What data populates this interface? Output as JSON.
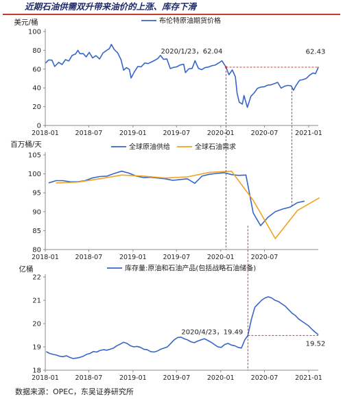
{
  "header": {
    "title": "近期石油供需双升带来油价的上涨、库存下滑"
  },
  "footer": {
    "source": "数据来源：OPEC，东吴证券研究所"
  },
  "colors": {
    "blue": "#3565c8",
    "orange": "#f0a21e",
    "red": "#d9342b",
    "axis": "#888888",
    "text": "#222222"
  },
  "chart_data": [
    {
      "type": "line",
      "ylabel": "美元/桶",
      "ylim": [
        0,
        100
      ],
      "yticks": [
        0,
        20,
        40,
        60,
        80,
        100
      ],
      "xlim": [
        "2018-01-01",
        "2021-02-10"
      ],
      "xticks": [
        "2018-01",
        "2018-07",
        "2019-01",
        "2019-07",
        "2020-01",
        "2020-07",
        "2021-01"
      ],
      "legend_position": "top",
      "grid": false,
      "series": [
        {
          "name": "布伦特原油期货价格",
          "color": "#3565c8",
          "points": [
            [
              "2018-01-02",
              66.5
            ],
            [
              "2018-01-15",
              69.8
            ],
            [
              "2018-01-29",
              69.5
            ],
            [
              "2018-02-09",
              62.8
            ],
            [
              "2018-02-26",
              67.2
            ],
            [
              "2018-03-12",
              64.9
            ],
            [
              "2018-03-26",
              70.1
            ],
            [
              "2018-04-09",
              68.6
            ],
            [
              "2018-04-23",
              74.7
            ],
            [
              "2018-05-07",
              76.1
            ],
            [
              "2018-05-17",
              80.0
            ],
            [
              "2018-05-25",
              76.4
            ],
            [
              "2018-06-08",
              76.5
            ],
            [
              "2018-06-20",
              73.0
            ],
            [
              "2018-07-03",
              77.8
            ],
            [
              "2018-07-17",
              72.0
            ],
            [
              "2018-07-31",
              74.3
            ],
            [
              "2018-08-15",
              70.8
            ],
            [
              "2018-08-29",
              77.1
            ],
            [
              "2018-09-12",
              79.7
            ],
            [
              "2018-09-25",
              81.9
            ],
            [
              "2018-10-03",
              86.3
            ],
            [
              "2018-10-15",
              80.8
            ],
            [
              "2018-10-29",
              77.3
            ],
            [
              "2018-11-12",
              70.1
            ],
            [
              "2018-11-23",
              58.8
            ],
            [
              "2018-12-05",
              61.6
            ],
            [
              "2018-12-17",
              59.6
            ],
            [
              "2018-12-24",
              50.5
            ],
            [
              "2019-01-07",
              57.3
            ],
            [
              "2019-01-21",
              62.7
            ],
            [
              "2019-02-04",
              62.5
            ],
            [
              "2019-02-19",
              66.5
            ],
            [
              "2019-03-05",
              65.9
            ],
            [
              "2019-03-19",
              67.6
            ],
            [
              "2019-04-02",
              69.4
            ],
            [
              "2019-04-16",
              71.7
            ],
            [
              "2019-04-25",
              74.6
            ],
            [
              "2019-05-08",
              70.4
            ],
            [
              "2019-05-22",
              70.9
            ],
            [
              "2019-06-05",
              60.6
            ],
            [
              "2019-06-19",
              61.8
            ],
            [
              "2019-07-02",
              62.4
            ],
            [
              "2019-07-16",
              64.4
            ],
            [
              "2019-07-31",
              65.2
            ],
            [
              "2019-08-07",
              56.2
            ],
            [
              "2019-08-21",
              60.3
            ],
            [
              "2019-09-04",
              60.7
            ],
            [
              "2019-09-16",
              69.0
            ],
            [
              "2019-09-30",
              60.8
            ],
            [
              "2019-10-14",
              59.4
            ],
            [
              "2019-10-28",
              61.6
            ],
            [
              "2019-11-11",
              62.2
            ],
            [
              "2019-11-25",
              63.6
            ],
            [
              "2019-12-09",
              64.3
            ],
            [
              "2019-12-23",
              66.4
            ],
            [
              "2020-01-06",
              68.9
            ],
            [
              "2020-01-23",
              62.04
            ],
            [
              "2020-02-04",
              54.0
            ],
            [
              "2020-02-18",
              59.1
            ],
            [
              "2020-03-02",
              51.9
            ],
            [
              "2020-03-09",
              34.4
            ],
            [
              "2020-03-18",
              24.9
            ],
            [
              "2020-03-31",
              22.7
            ],
            [
              "2020-04-07",
              31.9
            ],
            [
              "2020-04-21",
              19.3
            ],
            [
              "2020-05-05",
              30.9
            ],
            [
              "2020-05-19",
              34.7
            ],
            [
              "2020-06-02",
              39.6
            ],
            [
              "2020-06-16",
              40.9
            ],
            [
              "2020-06-30",
              41.2
            ],
            [
              "2020-07-14",
              42.9
            ],
            [
              "2020-07-28",
              43.2
            ],
            [
              "2020-08-11",
              44.5
            ],
            [
              "2020-08-25",
              45.9
            ],
            [
              "2020-09-08",
              39.8
            ],
            [
              "2020-09-22",
              41.7
            ],
            [
              "2020-10-06",
              42.7
            ],
            [
              "2020-10-20",
              42.2
            ],
            [
              "2020-10-30",
              37.5
            ],
            [
              "2020-11-09",
              42.4
            ],
            [
              "2020-11-24",
              48.1
            ],
            [
              "2020-12-08",
              48.8
            ],
            [
              "2020-12-22",
              50.1
            ],
            [
              "2021-01-05",
              53.6
            ],
            [
              "2021-01-19",
              55.9
            ],
            [
              "2021-01-29",
              55.0
            ],
            [
              "2021-02-08",
              60.6
            ],
            [
              "2021-02-10",
              62.43
            ]
          ]
        }
      ],
      "annotations": [
        {
          "text": "2020/1/23，62.04",
          "date": "2020-01-23",
          "value": 62.04
        },
        {
          "text": "62.43",
          "date": "2021-02-10",
          "value": 62.43
        }
      ]
    },
    {
      "type": "line",
      "ylabel": "百万桶/天",
      "ylim": [
        80,
        105
      ],
      "yticks": [
        80,
        85,
        90,
        95,
        100,
        105
      ],
      "xlim": [
        "2018-01-01",
        "2021-02-10"
      ],
      "xticks": [
        "2018-01",
        "2018-07",
        "2019-01",
        "2019-07",
        "2020-01",
        "2020-07"
      ],
      "legend_position": "top",
      "grid": false,
      "series": [
        {
          "name": "全球原油供给",
          "color": "#3565c8",
          "points": [
            [
              "2018-01-15",
              97.6
            ],
            [
              "2018-02-15",
              98.2
            ],
            [
              "2018-03-15",
              98.2
            ],
            [
              "2018-04-15",
              97.9
            ],
            [
              "2018-05-15",
              97.9
            ],
            [
              "2018-06-15",
              98.2
            ],
            [
              "2018-07-15",
              98.9
            ],
            [
              "2018-08-15",
              99.3
            ],
            [
              "2018-09-15",
              99.4
            ],
            [
              "2018-10-15",
              100.1
            ],
            [
              "2018-11-15",
              100.7
            ],
            [
              "2018-12-15",
              100.2
            ],
            [
              "2019-01-15",
              99.4
            ],
            [
              "2019-02-15",
              99.0
            ],
            [
              "2019-03-15",
              99.1
            ],
            [
              "2019-04-15",
              98.9
            ],
            [
              "2019-05-15",
              98.7
            ],
            [
              "2019-06-15",
              98.3
            ],
            [
              "2019-07-15",
              98.5
            ],
            [
              "2019-08-15",
              98.7
            ],
            [
              "2019-09-15",
              97.5
            ],
            [
              "2019-10-15",
              99.4
            ],
            [
              "2019-11-15",
              99.9
            ],
            [
              "2019-12-15",
              100.1
            ],
            [
              "2020-01-15",
              100.3
            ],
            [
              "2020-02-15",
              99.8
            ],
            [
              "2020-03-15",
              99.6
            ],
            [
              "2020-04-15",
              99.7
            ],
            [
              "2020-05-15",
              89.7
            ],
            [
              "2020-06-15",
              86.3
            ],
            [
              "2020-07-15",
              88.5
            ],
            [
              "2020-08-15",
              90.0
            ],
            [
              "2020-09-15",
              90.7
            ],
            [
              "2020-10-15",
              91.2
            ],
            [
              "2020-11-15",
              92.4
            ],
            [
              "2020-12-15",
              92.8
            ]
          ]
        },
        {
          "name": "全球石油需求",
          "color": "#f0a21e",
          "points": [
            [
              "2018-02-15",
              97.6
            ],
            [
              "2018-05-15",
              97.8
            ],
            [
              "2018-08-15",
              98.7
            ],
            [
              "2018-11-15",
              99.7
            ],
            [
              "2019-02-15",
              99.4
            ],
            [
              "2019-05-15",
              98.9
            ],
            [
              "2019-08-15",
              99.2
            ],
            [
              "2019-11-15",
              100.4
            ],
            [
              "2020-02-15",
              100.7
            ],
            [
              "2020-05-15",
              93.0
            ],
            [
              "2020-08-15",
              82.9
            ],
            [
              "2020-11-15",
              90.3
            ],
            [
              "2021-02-15",
              93.7
            ]
          ]
        }
      ]
    },
    {
      "type": "line",
      "ylabel": "亿桶",
      "ylim": [
        18,
        22
      ],
      "yticks": [
        18,
        19,
        20,
        21,
        22
      ],
      "xlim": [
        "2018-01-01",
        "2021-02-10"
      ],
      "xticks": [
        "2018-01",
        "2018-07",
        "2019-01",
        "2019-07",
        "2020-01",
        "2020-07",
        "2021-01"
      ],
      "legend_position": "top",
      "grid": false,
      "series": [
        {
          "name": "库存量:原油和石油产品(包括战略石油储备)",
          "color": "#3565c8",
          "points": [
            [
              "2018-01-05",
              18.8
            ],
            [
              "2018-01-19",
              18.72
            ],
            [
              "2018-02-02",
              18.68
            ],
            [
              "2018-02-16",
              18.65
            ],
            [
              "2018-03-02",
              18.6
            ],
            [
              "2018-03-16",
              18.58
            ],
            [
              "2018-03-30",
              18.62
            ],
            [
              "2018-04-13",
              18.55
            ],
            [
              "2018-04-27",
              18.5
            ],
            [
              "2018-05-11",
              18.52
            ],
            [
              "2018-05-25",
              18.55
            ],
            [
              "2018-06-08",
              18.6
            ],
            [
              "2018-06-22",
              18.68
            ],
            [
              "2018-07-06",
              18.72
            ],
            [
              "2018-07-20",
              18.8
            ],
            [
              "2018-08-03",
              18.78
            ],
            [
              "2018-08-17",
              18.85
            ],
            [
              "2018-08-31",
              18.88
            ],
            [
              "2018-09-14",
              18.86
            ],
            [
              "2018-09-28",
              18.9
            ],
            [
              "2018-10-12",
              18.95
            ],
            [
              "2018-10-26",
              19.05
            ],
            [
              "2018-11-09",
              19.12
            ],
            [
              "2018-11-23",
              19.2
            ],
            [
              "2018-12-07",
              19.15
            ],
            [
              "2018-12-21",
              19.05
            ],
            [
              "2019-01-04",
              19.0
            ],
            [
              "2019-01-18",
              19.02
            ],
            [
              "2019-02-01",
              18.98
            ],
            [
              "2019-02-15",
              18.9
            ],
            [
              "2019-03-01",
              18.88
            ],
            [
              "2019-03-15",
              18.8
            ],
            [
              "2019-03-29",
              18.78
            ],
            [
              "2019-04-12",
              18.82
            ],
            [
              "2019-04-26",
              18.9
            ],
            [
              "2019-05-10",
              18.95
            ],
            [
              "2019-05-24",
              19.0
            ],
            [
              "2019-06-07",
              19.15
            ],
            [
              "2019-06-21",
              19.3
            ],
            [
              "2019-07-05",
              19.4
            ],
            [
              "2019-07-19",
              19.42
            ],
            [
              "2019-08-02",
              19.35
            ],
            [
              "2019-08-16",
              19.3
            ],
            [
              "2019-08-30",
              19.22
            ],
            [
              "2019-09-13",
              19.18
            ],
            [
              "2019-09-27",
              19.25
            ],
            [
              "2019-10-11",
              19.3
            ],
            [
              "2019-10-25",
              19.35
            ],
            [
              "2019-11-08",
              19.28
            ],
            [
              "2019-11-22",
              19.2
            ],
            [
              "2019-12-06",
              19.1
            ],
            [
              "2019-12-20",
              19.0
            ],
            [
              "2020-01-03",
              18.98
            ],
            [
              "2020-01-17",
              19.1
            ],
            [
              "2020-01-31",
              19.15
            ],
            [
              "2020-02-14",
              19.08
            ],
            [
              "2020-02-28",
              19.05
            ],
            [
              "2020-03-13",
              18.98
            ],
            [
              "2020-03-27",
              18.95
            ],
            [
              "2020-04-10",
              19.3
            ],
            [
              "2020-04-23",
              19.49
            ],
            [
              "2020-05-08",
              20.2
            ],
            [
              "2020-05-22",
              20.7
            ],
            [
              "2020-06-05",
              20.85
            ],
            [
              "2020-06-19",
              21.0
            ],
            [
              "2020-07-03",
              21.1
            ],
            [
              "2020-07-17",
              21.15
            ],
            [
              "2020-07-31",
              21.1
            ],
            [
              "2020-08-14",
              21.0
            ],
            [
              "2020-08-28",
              20.95
            ],
            [
              "2020-09-11",
              20.85
            ],
            [
              "2020-09-25",
              20.75
            ],
            [
              "2020-10-09",
              20.6
            ],
            [
              "2020-10-23",
              20.45
            ],
            [
              "2020-11-06",
              20.35
            ],
            [
              "2020-11-20",
              20.2
            ],
            [
              "2020-12-04",
              20.1
            ],
            [
              "2020-12-18",
              20.0
            ],
            [
              "2021-01-01",
              19.9
            ],
            [
              "2021-01-15",
              19.75
            ],
            [
              "2021-01-29",
              19.62
            ],
            [
              "2021-02-10",
              19.52
            ]
          ]
        }
      ],
      "annotations": [
        {
          "text": "2020/4/23，19.49",
          "date": "2020-04-23",
          "value": 19.49
        },
        {
          "text": "19.52",
          "date": "2021-02-10",
          "value": 19.52
        }
      ]
    }
  ],
  "reference_lines": [
    {
      "date": "2020-01-23",
      "spans": "price and supply/demand panels"
    },
    {
      "date": "2020-04-23",
      "spans": "supply/demand and inventory panels"
    },
    {
      "date": "2020-10-23",
      "spans": "price and supply/demand panels"
    }
  ]
}
